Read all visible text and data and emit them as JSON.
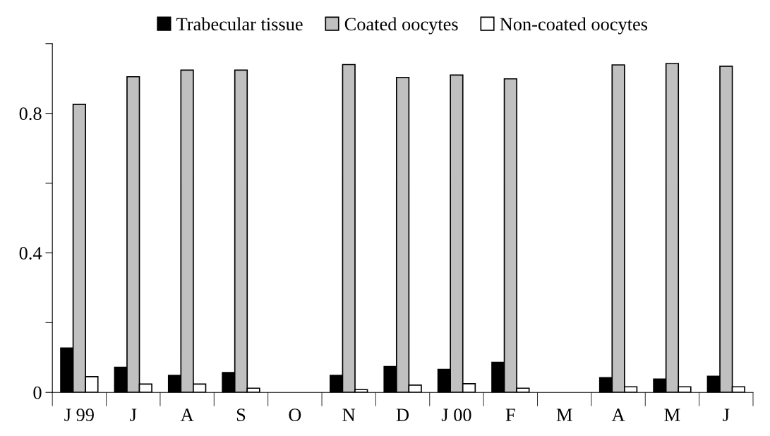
{
  "chart_data": {
    "type": "bar",
    "categories": [
      "J 99",
      "J",
      "A",
      "S",
      "O",
      "N",
      "D",
      "J 00",
      "F",
      "M",
      "A",
      "M",
      "J"
    ],
    "series": [
      {
        "name": "Trabecular tissue",
        "color": "#000000",
        "values": [
          0.127,
          0.072,
          0.049,
          0.057,
          null,
          0.049,
          0.074,
          0.066,
          0.086,
          null,
          0.042,
          0.038,
          0.046
        ]
      },
      {
        "name": "Coated oocytes",
        "color": "#c0c0c0",
        "values": [
          0.826,
          0.905,
          0.924,
          0.924,
          null,
          0.94,
          0.903,
          0.91,
          0.899,
          null,
          0.939,
          0.943,
          0.935
        ]
      },
      {
        "name": "Non-coated oocytes",
        "color": "#ffffff",
        "values": [
          0.045,
          0.024,
          0.024,
          0.012,
          null,
          0.008,
          0.021,
          0.025,
          0.012,
          null,
          0.016,
          0.016,
          0.016
        ]
      }
    ],
    "ylim": [
      0,
      1
    ],
    "yticks": [
      0,
      {
        "value": 0.2,
        "label": null
      },
      0.4,
      {
        "value": 0.6,
        "label": null
      },
      0.8,
      {
        "value": 1.0,
        "label": null
      }
    ],
    "grid": false,
    "legend": "top"
  }
}
